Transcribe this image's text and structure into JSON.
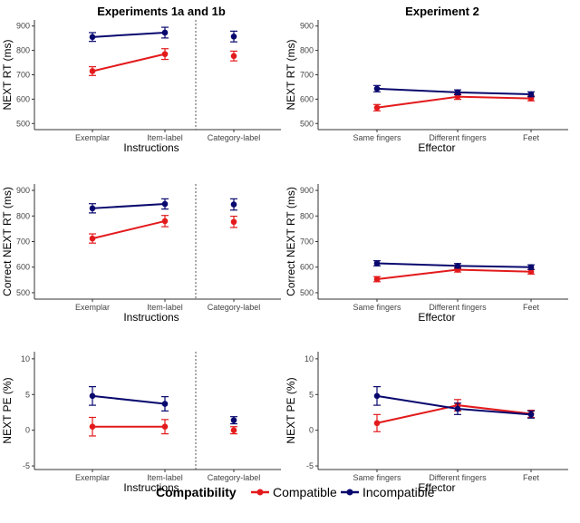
{
  "figure": {
    "titles": [
      "Experiments 1a and 1b",
      "Experiment 2"
    ],
    "legend": {
      "title": "Compatibility",
      "entries": [
        {
          "name": "Compatible",
          "color": "#e31a1c"
        },
        {
          "name": "Incompatible",
          "color": "#08086e"
        }
      ]
    }
  },
  "chart_data": [
    {
      "type": "line",
      "experiment": "Experiments 1a and 1b",
      "ylabel": "NEXT RT (ms)",
      "xlabel": "Instructions",
      "ylim": [
        475,
        925
      ],
      "yticks": [
        500,
        600,
        700,
        800,
        900
      ],
      "categories": [
        "Exemplar",
        "Item-label",
        "Category-label"
      ],
      "separated_category": "Category-label",
      "series": [
        {
          "name": "Compatible",
          "color": "#e31a1c",
          "values": [
            715,
            785,
            777
          ],
          "errors": [
            18,
            22,
            20
          ]
        },
        {
          "name": "Incompatible",
          "color": "#08086e",
          "values": [
            855,
            873,
            857
          ],
          "errors": [
            18,
            22,
            22
          ]
        }
      ]
    },
    {
      "type": "line",
      "experiment": "Experiment 2",
      "ylabel": "NEXT RT (ms)",
      "xlabel": "Effector",
      "ylim": [
        475,
        925
      ],
      "yticks": [
        500,
        600,
        700,
        800,
        900
      ],
      "categories": [
        "Same fingers",
        "Different fingers",
        "Feet"
      ],
      "series": [
        {
          "name": "Compatible",
          "color": "#e31a1c",
          "values": [
            565,
            610,
            603
          ],
          "errors": [
            13,
            11,
            10
          ]
        },
        {
          "name": "Incompatible",
          "color": "#08086e",
          "values": [
            643,
            628,
            620
          ],
          "errors": [
            13,
            10,
            10
          ]
        }
      ]
    },
    {
      "type": "line",
      "experiment": "Experiments 1a and 1b",
      "ylabel": "Correct NEXT RT (ms)",
      "xlabel": "Instructions",
      "ylim": [
        475,
        925
      ],
      "yticks": [
        500,
        600,
        700,
        800,
        900
      ],
      "categories": [
        "Exemplar",
        "Item-label",
        "Category-label"
      ],
      "separated_category": "Category-label",
      "series": [
        {
          "name": "Compatible",
          "color": "#e31a1c",
          "values": [
            712,
            780,
            777
          ],
          "errors": [
            18,
            22,
            22
          ]
        },
        {
          "name": "Incompatible",
          "color": "#08086e",
          "values": [
            830,
            847,
            845
          ],
          "errors": [
            18,
            20,
            22
          ]
        }
      ]
    },
    {
      "type": "line",
      "experiment": "Experiment 2",
      "ylabel": "Correct NEXT RT (ms)",
      "xlabel": "Effector",
      "ylim": [
        475,
        925
      ],
      "yticks": [
        500,
        600,
        700,
        800,
        900
      ],
      "categories": [
        "Same fingers",
        "Different fingers",
        "Feet"
      ],
      "series": [
        {
          "name": "Compatible",
          "color": "#e31a1c",
          "values": [
            553,
            590,
            582
          ],
          "errors": [
            10,
            9,
            9
          ]
        },
        {
          "name": "Incompatible",
          "color": "#08086e",
          "values": [
            615,
            605,
            600
          ],
          "errors": [
            10,
            9,
            9
          ]
        }
      ]
    },
    {
      "type": "line",
      "experiment": "Experiments 1a and 1b",
      "ylabel": "NEXT PE (%)",
      "xlabel": "Instructions",
      "ylim": [
        -5.5,
        11
      ],
      "yticks": [
        -5,
        0,
        5,
        10
      ],
      "categories": [
        "Exemplar",
        "Item-label",
        "Category-label"
      ],
      "separated_category": "Category-label",
      "series": [
        {
          "name": "Compatible",
          "color": "#e31a1c",
          "values": [
            0.5,
            0.5,
            0.0
          ],
          "errors": [
            1.3,
            1.0,
            0.5
          ]
        },
        {
          "name": "Incompatible",
          "color": "#08086e",
          "values": [
            4.8,
            3.7,
            1.4
          ],
          "errors": [
            1.3,
            1.0,
            0.5
          ]
        }
      ]
    },
    {
      "type": "line",
      "experiment": "Experiment 2",
      "ylabel": "NEXT PE (%)",
      "xlabel": "Effector",
      "ylim": [
        -5.5,
        11
      ],
      "yticks": [
        -5,
        0,
        5,
        10
      ],
      "categories": [
        "Same fingers",
        "Different fingers",
        "Feet"
      ],
      "series": [
        {
          "name": "Compatible",
          "color": "#e31a1c",
          "values": [
            1.0,
            3.5,
            2.3
          ],
          "errors": [
            1.2,
            0.8,
            0.5
          ]
        },
        {
          "name": "Incompatible",
          "color": "#08086e",
          "values": [
            4.8,
            3.0,
            2.2
          ],
          "errors": [
            1.3,
            0.8,
            0.5
          ]
        }
      ]
    }
  ]
}
